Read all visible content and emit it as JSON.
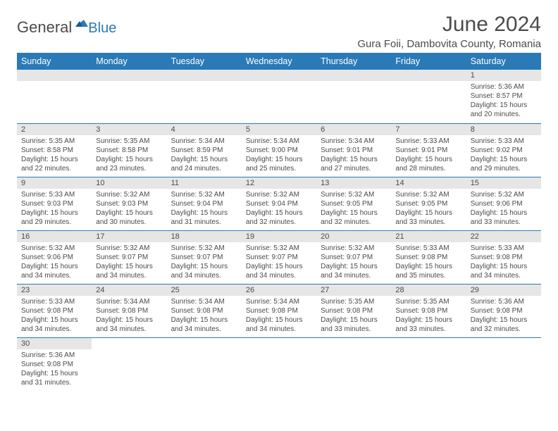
{
  "brand": {
    "general": "General",
    "blue": "Blue"
  },
  "title": "June 2024",
  "location": "Gura Foii, Dambovita County, Romania",
  "colors": {
    "header_bg": "#2a7ab8",
    "header_text": "#ffffff",
    "daynum_bg": "#e6e6e6",
    "text": "#4b4b4b",
    "cell_border": "#2a7ab8",
    "page_bg": "#ffffff"
  },
  "weekdays": [
    "Sunday",
    "Monday",
    "Tuesday",
    "Wednesday",
    "Thursday",
    "Friday",
    "Saturday"
  ],
  "weeks": [
    [
      null,
      null,
      null,
      null,
      null,
      null,
      {
        "n": "1",
        "sr": "5:36 AM",
        "ss": "8:57 PM",
        "dl": "15 hours and 20 minutes."
      }
    ],
    [
      {
        "n": "2",
        "sr": "5:35 AM",
        "ss": "8:58 PM",
        "dl": "15 hours and 22 minutes."
      },
      {
        "n": "3",
        "sr": "5:35 AM",
        "ss": "8:58 PM",
        "dl": "15 hours and 23 minutes."
      },
      {
        "n": "4",
        "sr": "5:34 AM",
        "ss": "8:59 PM",
        "dl": "15 hours and 24 minutes."
      },
      {
        "n": "5",
        "sr": "5:34 AM",
        "ss": "9:00 PM",
        "dl": "15 hours and 25 minutes."
      },
      {
        "n": "6",
        "sr": "5:34 AM",
        "ss": "9:01 PM",
        "dl": "15 hours and 27 minutes."
      },
      {
        "n": "7",
        "sr": "5:33 AM",
        "ss": "9:01 PM",
        "dl": "15 hours and 28 minutes."
      },
      {
        "n": "8",
        "sr": "5:33 AM",
        "ss": "9:02 PM",
        "dl": "15 hours and 29 minutes."
      }
    ],
    [
      {
        "n": "9",
        "sr": "5:33 AM",
        "ss": "9:03 PM",
        "dl": "15 hours and 29 minutes."
      },
      {
        "n": "10",
        "sr": "5:32 AM",
        "ss": "9:03 PM",
        "dl": "15 hours and 30 minutes."
      },
      {
        "n": "11",
        "sr": "5:32 AM",
        "ss": "9:04 PM",
        "dl": "15 hours and 31 minutes."
      },
      {
        "n": "12",
        "sr": "5:32 AM",
        "ss": "9:04 PM",
        "dl": "15 hours and 32 minutes."
      },
      {
        "n": "13",
        "sr": "5:32 AM",
        "ss": "9:05 PM",
        "dl": "15 hours and 32 minutes."
      },
      {
        "n": "14",
        "sr": "5:32 AM",
        "ss": "9:05 PM",
        "dl": "15 hours and 33 minutes."
      },
      {
        "n": "15",
        "sr": "5:32 AM",
        "ss": "9:06 PM",
        "dl": "15 hours and 33 minutes."
      }
    ],
    [
      {
        "n": "16",
        "sr": "5:32 AM",
        "ss": "9:06 PM",
        "dl": "15 hours and 34 minutes."
      },
      {
        "n": "17",
        "sr": "5:32 AM",
        "ss": "9:07 PM",
        "dl": "15 hours and 34 minutes."
      },
      {
        "n": "18",
        "sr": "5:32 AM",
        "ss": "9:07 PM",
        "dl": "15 hours and 34 minutes."
      },
      {
        "n": "19",
        "sr": "5:32 AM",
        "ss": "9:07 PM",
        "dl": "15 hours and 34 minutes."
      },
      {
        "n": "20",
        "sr": "5:32 AM",
        "ss": "9:07 PM",
        "dl": "15 hours and 34 minutes."
      },
      {
        "n": "21",
        "sr": "5:33 AM",
        "ss": "9:08 PM",
        "dl": "15 hours and 35 minutes."
      },
      {
        "n": "22",
        "sr": "5:33 AM",
        "ss": "9:08 PM",
        "dl": "15 hours and 34 minutes."
      }
    ],
    [
      {
        "n": "23",
        "sr": "5:33 AM",
        "ss": "9:08 PM",
        "dl": "15 hours and 34 minutes."
      },
      {
        "n": "24",
        "sr": "5:34 AM",
        "ss": "9:08 PM",
        "dl": "15 hours and 34 minutes."
      },
      {
        "n": "25",
        "sr": "5:34 AM",
        "ss": "9:08 PM",
        "dl": "15 hours and 34 minutes."
      },
      {
        "n": "26",
        "sr": "5:34 AM",
        "ss": "9:08 PM",
        "dl": "15 hours and 34 minutes."
      },
      {
        "n": "27",
        "sr": "5:35 AM",
        "ss": "9:08 PM",
        "dl": "15 hours and 33 minutes."
      },
      {
        "n": "28",
        "sr": "5:35 AM",
        "ss": "9:08 PM",
        "dl": "15 hours and 33 minutes."
      },
      {
        "n": "29",
        "sr": "5:36 AM",
        "ss": "9:08 PM",
        "dl": "15 hours and 32 minutes."
      }
    ],
    [
      {
        "n": "30",
        "sr": "5:36 AM",
        "ss": "9:08 PM",
        "dl": "15 hours and 31 minutes."
      },
      null,
      null,
      null,
      null,
      null,
      null
    ]
  ],
  "labels": {
    "sunrise": "Sunrise: ",
    "sunset": "Sunset: ",
    "daylight": "Daylight: "
  }
}
